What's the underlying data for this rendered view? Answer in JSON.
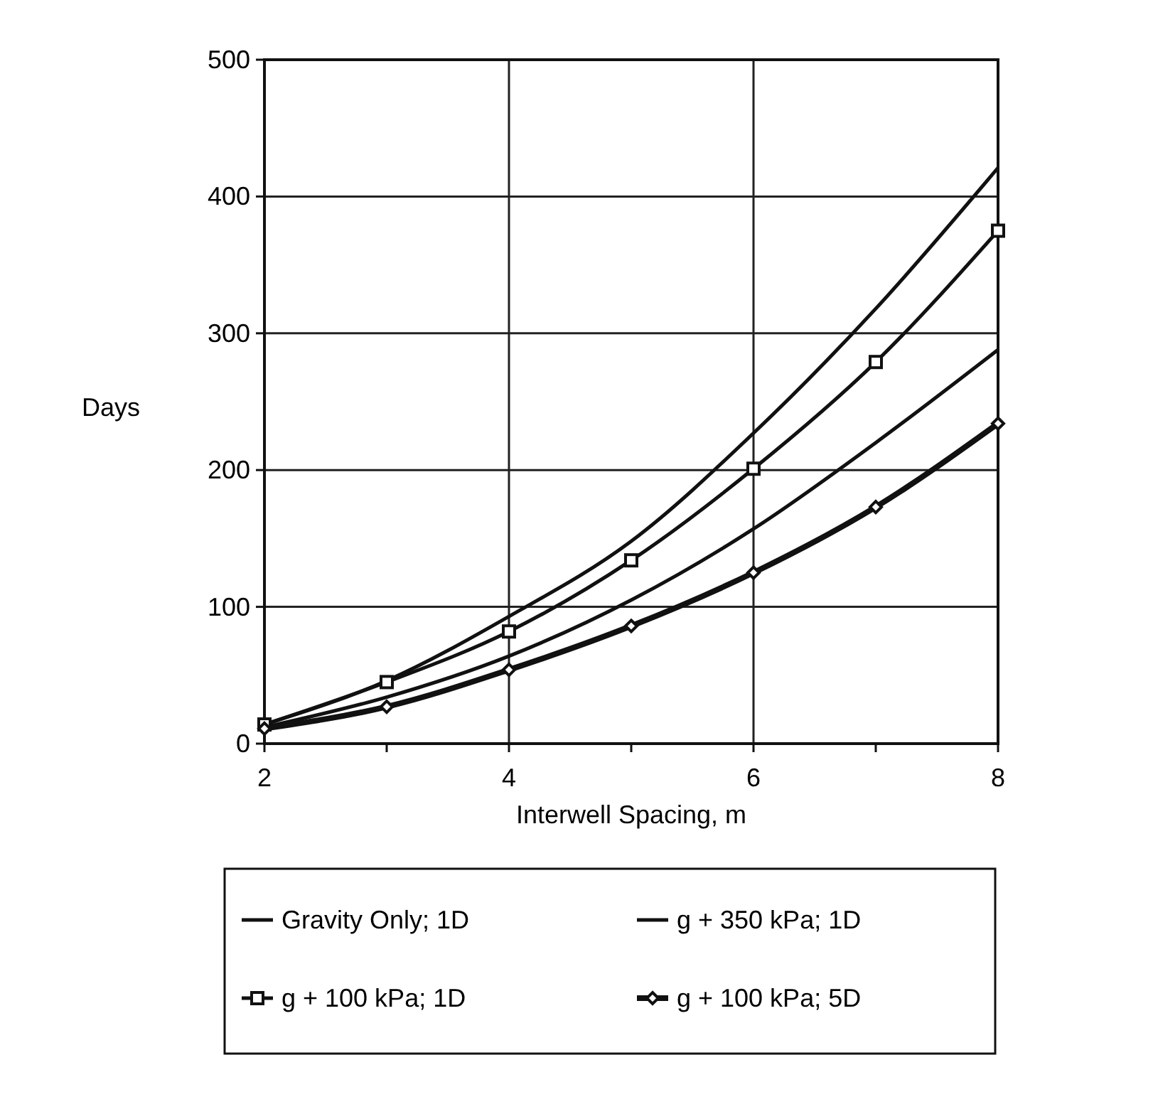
{
  "chart_data": {
    "type": "line",
    "xlabel": "Interwell Spacing, m",
    "ylabel": "Days",
    "x": [
      2,
      3,
      4,
      5,
      6,
      7,
      8
    ],
    "xlim": [
      2,
      8
    ],
    "xticks": [
      2,
      {
        "value": 3,
        "label": null
      },
      4,
      {
        "value": 5,
        "label": null
      },
      6,
      {
        "value": 7,
        "label": null
      },
      8
    ],
    "ylim": [
      0,
      500
    ],
    "yticks": [
      0,
      100,
      200,
      300,
      400,
      500
    ],
    "grid": true,
    "legend": "bottom",
    "line_style": "solid",
    "series": [
      {
        "name": "Gravity Only; 1D",
        "color": "#111111",
        "marker": "none",
        "values": [
          14,
          46,
          93,
          148,
          227,
          318,
          421
        ]
      },
      {
        "name": "g + 350 kPa; 1D",
        "color": "#111111",
        "marker": "none",
        "values": [
          12,
          34,
          64,
          105,
          157,
          220,
          288
        ]
      },
      {
        "name": "g + 100 kPa; 1D",
        "color": "#111111",
        "marker": "square",
        "values": [
          14,
          45,
          82,
          134,
          201,
          279,
          375
        ]
      },
      {
        "name": "g + 100 kPa; 5D",
        "color": "#111111",
        "marker": "diamond",
        "values": [
          11,
          27,
          54,
          86,
          125,
          173,
          234
        ]
      }
    ]
  }
}
